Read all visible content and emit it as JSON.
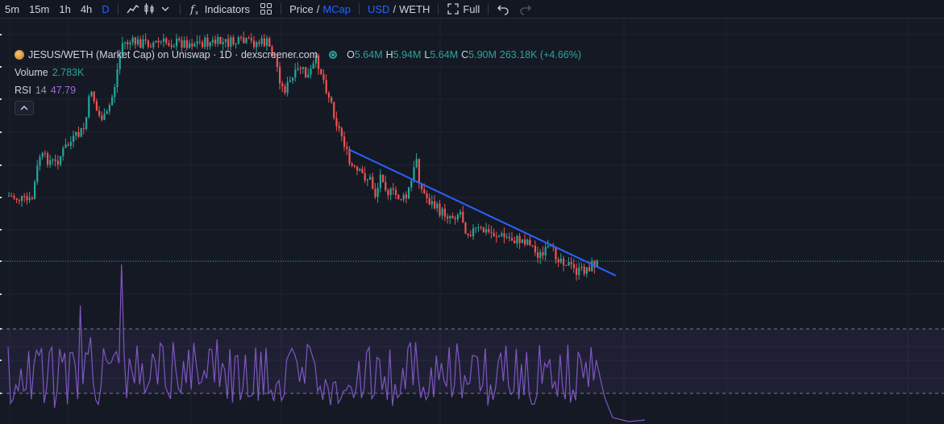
{
  "toolbar": {
    "timeframes": [
      "5m",
      "15m",
      "1h",
      "4h",
      "D"
    ],
    "active_timeframe": "D",
    "indicators_label": "Indicators",
    "price_label": "Price",
    "slash": "/",
    "mcap_label": "MCap",
    "usd_label": "USD",
    "weth_label": "WETH",
    "full_label": "Full"
  },
  "legend": {
    "title": "JESUS/WETH (Market Cap) on Uniswap · 1D · dexscreener.com",
    "ohlc": {
      "o_key": "O",
      "o_val": "5.64M",
      "h_key": "H",
      "h_val": "5.94M",
      "l_key": "L",
      "l_val": "5.64M",
      "c_key": "C",
      "c_val": "5.90M",
      "change": "263.18K (+4.66%)"
    },
    "volume": {
      "name": "Volume",
      "value": "2.783K"
    },
    "rsi": {
      "name": "RSI",
      "param": "14",
      "value": "47.79"
    }
  },
  "colors": {
    "up": "#26a69a",
    "down": "#ef5350",
    "trendline": "#2962ff",
    "rsi": "#7e57c2",
    "background": "#151924",
    "grid": "#1f2330"
  }
}
